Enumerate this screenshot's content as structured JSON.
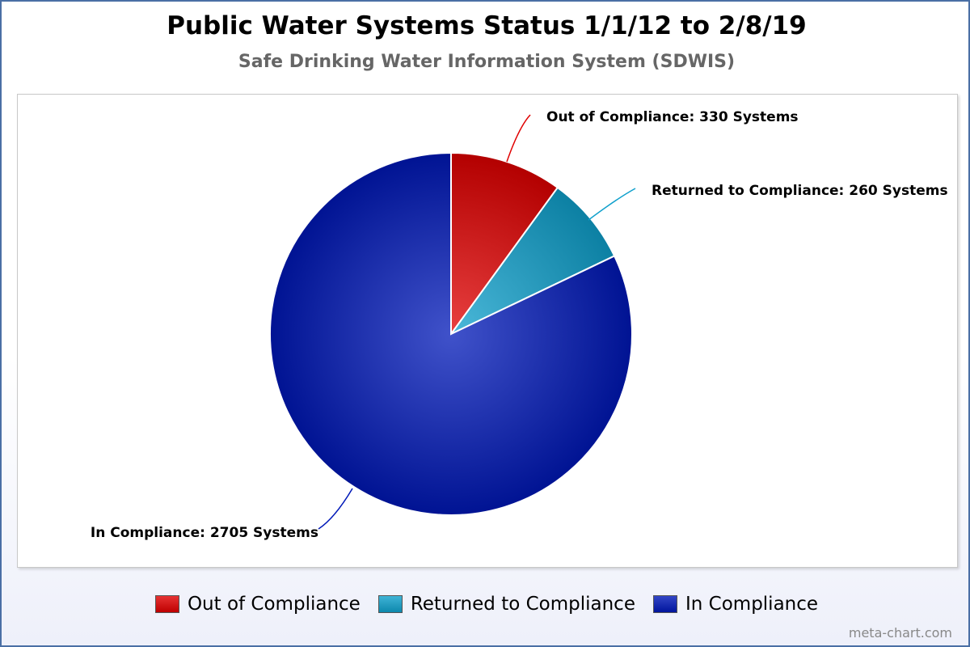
{
  "chart_data": {
    "type": "pie",
    "title": "Public Water Systems Status 1/1/12 to 2/8/19",
    "subtitle": "Safe Drinking Water Information System (SDWIS)",
    "slices": [
      {
        "label": "Out of Compliance",
        "value": 330,
        "unit": "Systems",
        "color": "#e00000"
      },
      {
        "label": "Returned to Compliance",
        "value": 260,
        "unit": "Systems",
        "color": "#0fa0cc"
      },
      {
        "label": "In Compliance",
        "value": 2705,
        "unit": "Systems",
        "color": "#0018b8"
      }
    ],
    "legend_position": "bottom"
  },
  "credit": "meta-chart.com"
}
